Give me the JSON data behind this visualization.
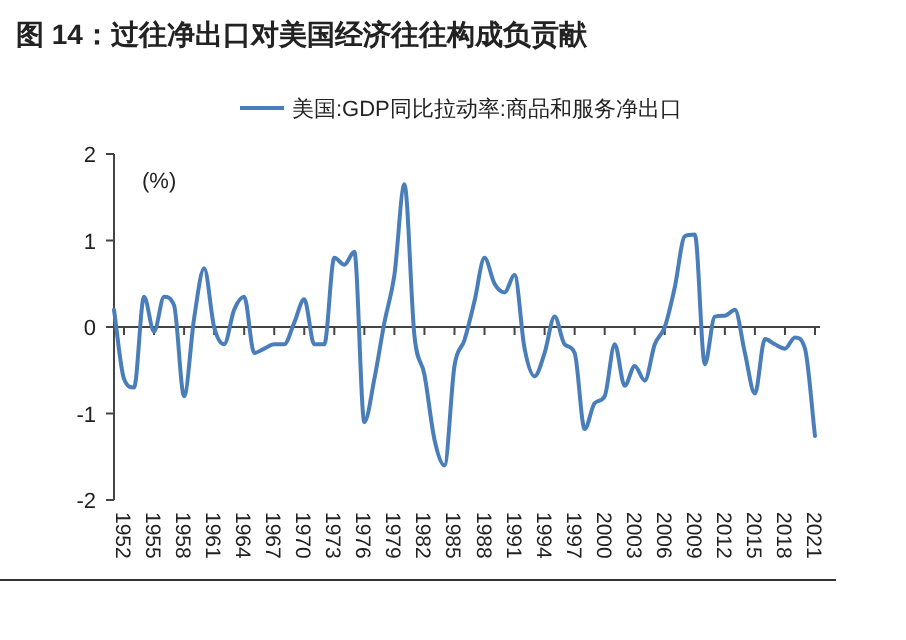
{
  "chart_data": {
    "type": "line",
    "title": "图 14：过往净出口对美国经济往往构成负贡献",
    "ylabel": "(%)",
    "x": [
      1951,
      1952,
      1953,
      1954,
      1955,
      1956,
      1957,
      1958,
      1959,
      1960,
      1961,
      1962,
      1963,
      1964,
      1965,
      1966,
      1967,
      1968,
      1969,
      1970,
      1971,
      1972,
      1973,
      1974,
      1975,
      1976,
      1977,
      1978,
      1979,
      1980,
      1981,
      1982,
      1983,
      1984,
      1985,
      1986,
      1987,
      1988,
      1989,
      1990,
      1991,
      1992,
      1993,
      1994,
      1995,
      1996,
      1997,
      1998,
      1999,
      2000,
      2001,
      2002,
      2003,
      2004,
      2005,
      2006,
      2007,
      2008,
      2009,
      2010,
      2011,
      2012,
      2013,
      2014,
      2015,
      2016,
      2017,
      2018,
      2019,
      2020,
      2021
    ],
    "series": [
      {
        "name": "美国:GDP同比拉动率:商品和服务净出口",
        "color": "#4a7ebb",
        "values": [
          0.2,
          -0.6,
          -0.7,
          0.35,
          -0.05,
          0.35,
          0.25,
          -0.8,
          0.1,
          0.68,
          0.0,
          -0.2,
          0.2,
          0.35,
          -0.3,
          -0.25,
          -0.2,
          -0.2,
          0.05,
          0.32,
          -0.2,
          -0.2,
          0.8,
          0.72,
          0.87,
          -1.1,
          -0.6,
          0.05,
          0.6,
          1.65,
          -0.1,
          -0.55,
          -1.3,
          -1.6,
          -0.45,
          -0.15,
          0.3,
          0.8,
          0.5,
          0.4,
          0.6,
          -0.25,
          -0.57,
          -0.3,
          0.12,
          -0.2,
          -0.3,
          -1.18,
          -0.88,
          -0.8,
          -0.2,
          -0.68,
          -0.45,
          -0.62,
          -0.2,
          0.0,
          0.46,
          1.05,
          1.07,
          -0.43,
          0.12,
          0.13,
          0.2,
          -0.3,
          -0.77,
          -0.14,
          -0.2,
          -0.25,
          -0.12,
          -0.25,
          -1.26
        ]
      }
    ],
    "xlim": [
      1951,
      2021.5
    ],
    "xticks": [
      1952,
      1955,
      1958,
      1961,
      1964,
      1967,
      1970,
      1973,
      1976,
      1979,
      1982,
      1985,
      1988,
      1991,
      1994,
      1997,
      2000,
      2003,
      2006,
      2009,
      2012,
      2015,
      2018,
      2021
    ],
    "ylim": [
      -2,
      2
    ],
    "yticks": [
      -2,
      -1,
      0,
      1,
      2
    ],
    "ref_lines": [
      {
        "axis": "y",
        "value": 0,
        "color": "#444444"
      }
    ],
    "legend": "top",
    "line_style": "solid",
    "marker": "none"
  }
}
